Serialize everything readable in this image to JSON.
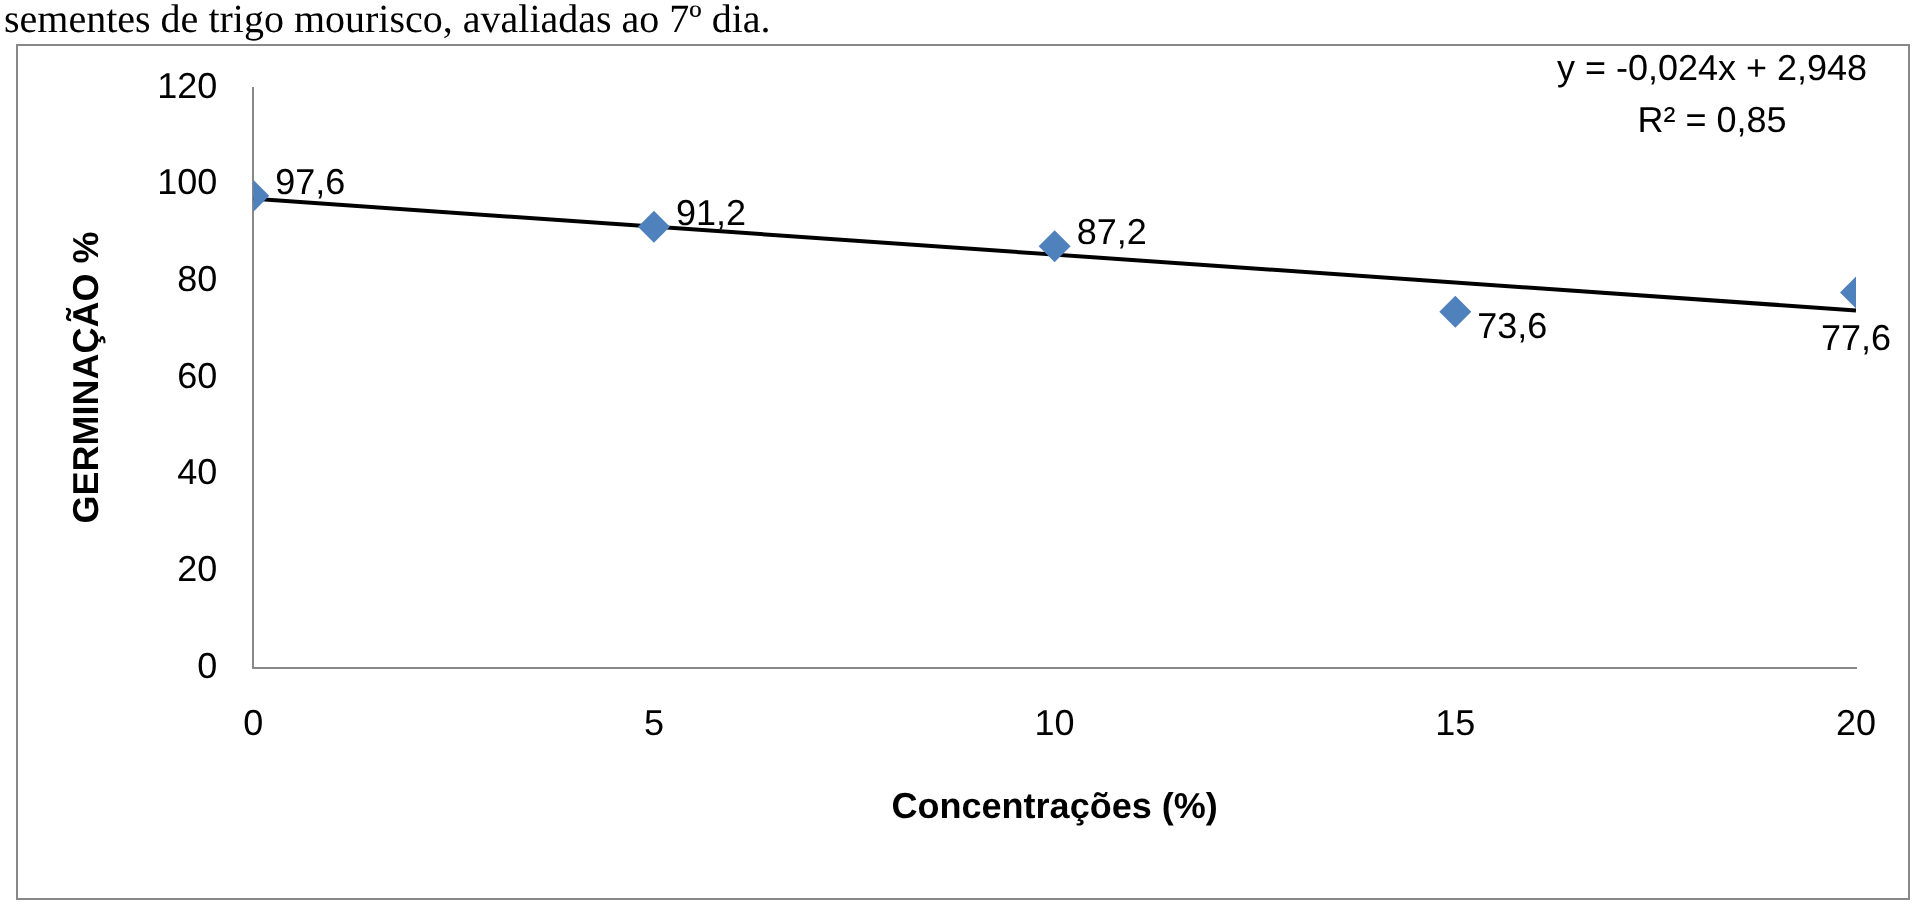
{
  "chart_data": {
    "type": "scatter",
    "title": "sementes de trigo mourisco, avaliadas ao 7º dia.",
    "xlabel": "Concentrações (%)",
    "ylabel": "GERMINAÇÃO %",
    "x": [
      0,
      5,
      10,
      15,
      20
    ],
    "series": [
      {
        "color": "#4f81bd",
        "values": [
          97.6,
          91.2,
          87.2,
          73.6,
          77.6
        ],
        "marker": "diamond",
        "value_labels": [
          "97,6",
          "91,2",
          "87,2",
          "73,6",
          "77,6"
        ]
      },
      {
        "type": "line",
        "color": "#000000",
        "x": [
          0,
          20
        ],
        "values": [
          97.0,
          73.9
        ],
        "marker": "none",
        "line_style": "solid"
      }
    ],
    "xlim": [
      0,
      20
    ],
    "xticks": [
      0,
      5,
      10,
      15,
      20
    ],
    "ylim": [
      0,
      120
    ],
    "yticks": [
      0,
      20,
      40,
      60,
      80,
      100,
      120
    ],
    "annotations": [
      "y = -0,024x + 2,948",
      "R² = 0,85"
    ],
    "grid": false,
    "legend": false
  }
}
